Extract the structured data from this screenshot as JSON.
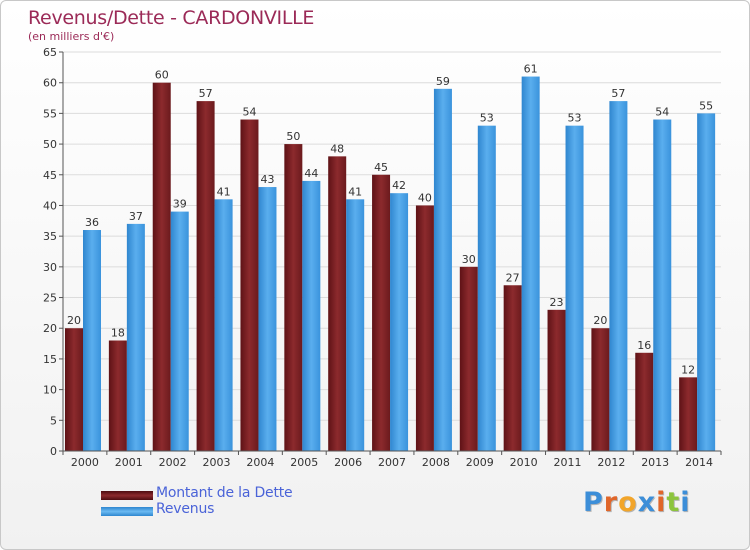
{
  "title": "Revenus/Dette - CARDONVILLE",
  "subtitle": "(en milliers d'€)",
  "legend": {
    "debt_label": "Montant de la Dette",
    "revenue_label": "Revenus"
  },
  "logo": {
    "text": "Proxiti",
    "alt": "Proxiti"
  },
  "colors": {
    "debt": "#7a1f22",
    "debt_light": "#a73b3e",
    "revenue": "#3d98df",
    "revenue_light": "#5bb0ef",
    "title": "#9b2a57",
    "legend_text": "#4a63d8"
  },
  "chart_data": {
    "type": "bar",
    "title": "Revenus/Dette - CARDONVILLE",
    "ylabel": "(en milliers d'€)",
    "categories": [
      "2000",
      "2001",
      "2002",
      "2003",
      "2004",
      "2005",
      "2006",
      "2007",
      "2008",
      "2009",
      "2010",
      "2011",
      "2012",
      "2013",
      "2014"
    ],
    "series": [
      {
        "name": "Montant de la Dette",
        "values": [
          20,
          18,
          60,
          57,
          54,
          50,
          48,
          45,
          40,
          30,
          27,
          23,
          20,
          16,
          12
        ]
      },
      {
        "name": "Revenus",
        "values": [
          36,
          37,
          39,
          41,
          43,
          44,
          41,
          42,
          59,
          53,
          61,
          53,
          57,
          54,
          55
        ]
      }
    ],
    "ylim": [
      0,
      65
    ],
    "yticks": [
      0,
      5,
      10,
      15,
      20,
      25,
      30,
      35,
      40,
      45,
      50,
      55,
      60,
      65
    ],
    "grid": true,
    "legend_position": "bottom-left"
  }
}
